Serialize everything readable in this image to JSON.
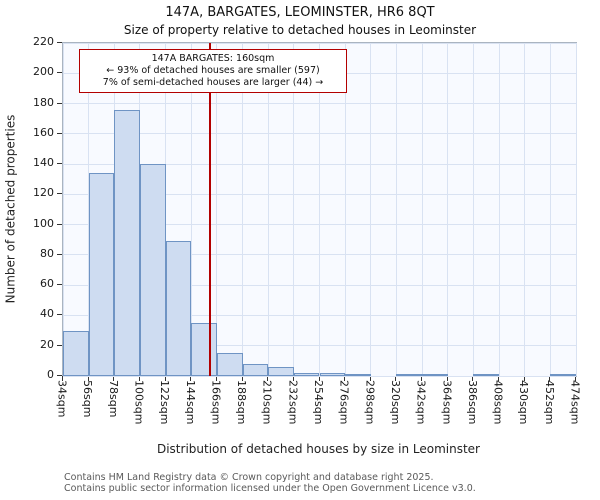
{
  "chart_data": {
    "type": "bar",
    "title": "147A, BARGATES, LEOMINSTER, HR6 8QT",
    "subtitle": "Size of property relative to detached houses in Leominster",
    "xlabel": "Distribution of detached houses by size in Leominster",
    "ylabel": "Number of detached properties",
    "bin_start": 34,
    "bin_width": 22,
    "x_tick_labels": [
      "34sqm",
      "56sqm",
      "78sqm",
      "100sqm",
      "122sqm",
      "144sqm",
      "166sqm",
      "188sqm",
      "210sqm",
      "232sqm",
      "254sqm",
      "276sqm",
      "298sqm",
      "320sqm",
      "342sqm",
      "364sqm",
      "386sqm",
      "408sqm",
      "430sqm",
      "452sqm",
      "474sqm"
    ],
    "values": [
      30,
      134,
      176,
      140,
      89,
      35,
      15,
      8,
      6,
      2,
      2,
      1,
      0,
      1,
      1,
      0,
      1,
      0,
      0,
      1
    ],
    "ylim": [
      0,
      220
    ],
    "y_ticks": [
      0,
      20,
      40,
      60,
      80,
      100,
      120,
      140,
      160,
      180,
      200,
      220
    ],
    "grid": true,
    "legend": "none",
    "marker_value": 160,
    "marker_color": "#b30000",
    "bar_fill": "#cedcf1",
    "bar_stroke": "#6f94c4",
    "plot_bg": "#f8faff",
    "annotation": {
      "line1": "147A BARGATES: 160sqm",
      "line2": "← 93% of detached houses are smaller (597)",
      "line3": "7% of semi-detached houses are larger (44) →"
    }
  },
  "footer": {
    "line1": "Contains HM Land Registry data © Crown copyright and database right 2025.",
    "line2": "Contains public sector information licensed under the Open Government Licence v3.0."
  }
}
